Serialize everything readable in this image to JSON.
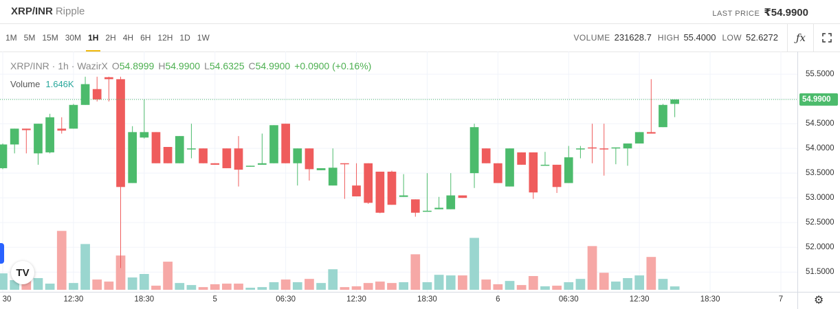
{
  "header": {
    "symbol": "XRP/INR",
    "name": "Ripple",
    "last_price_label": "LAST PRICE",
    "last_price": "₹54.9900"
  },
  "toolbar": {
    "intervals": [
      "1M",
      "5M",
      "15M",
      "30M",
      "1H",
      "2H",
      "4H",
      "6H",
      "12H",
      "1D",
      "1W"
    ],
    "active_index": 4,
    "stats": [
      {
        "label": "VOLUME",
        "value": "231628.7"
      },
      {
        "label": "HIGH",
        "value": "55.4000"
      },
      {
        "label": "LOW",
        "value": "52.6272"
      }
    ]
  },
  "chart_data": {
    "type": "candlestick",
    "legend": {
      "title": "XRP/INR · 1h · WazirX",
      "ohlc": [
        {
          "label": "O",
          "value": "54.8999"
        },
        {
          "label": "H",
          "value": "54.9900"
        },
        {
          "label": "L",
          "value": "54.6325"
        },
        {
          "label": "C",
          "value": "54.9900"
        }
      ],
      "change": "+0.0900 (+0.16%)"
    },
    "volume_legend": {
      "name": "Volume",
      "value": "1.646K"
    },
    "up_color": "#4cbb6c",
    "down_color": "#ef5c5c",
    "volume_up_color": "#9ad6cf",
    "volume_down_color": "#f6a8a6",
    "xlim": [
      -0.233,
      67.4
    ],
    "ylim": [
      51.1,
      55.96
    ],
    "grid": true,
    "xticks": [
      {
        "value": 0,
        "label": "30"
      },
      {
        "value": 6,
        "label": "12:30"
      },
      {
        "value": 12,
        "label": "18:30"
      },
      {
        "value": 18,
        "label": "5"
      },
      {
        "value": 24,
        "label": "06:30"
      },
      {
        "value": 30,
        "label": "12:30"
      },
      {
        "value": 36,
        "label": "18:30"
      },
      {
        "value": 42,
        "label": "6"
      },
      {
        "value": 48,
        "label": "06:30"
      },
      {
        "value": 54,
        "label": "12:30"
      },
      {
        "value": 60,
        "label": "18:30"
      },
      {
        "value": 66,
        "label": "7"
      }
    ],
    "yticks": [
      {
        "value": 51.5,
        "label": "51.5000"
      },
      {
        "value": 52,
        "label": "52.0000"
      },
      {
        "value": 52.5,
        "label": "52.5000"
      },
      {
        "value": 53,
        "label": "53.0000"
      },
      {
        "value": 53.5,
        "label": "53.5000"
      },
      {
        "value": 54,
        "label": "54.0000"
      },
      {
        "value": 54.5,
        "label": "54.5000"
      },
      {
        "value": 55,
        "label": "55.0000"
      },
      {
        "value": 55.5,
        "label": "55.5000"
      }
    ],
    "last_price": {
      "value": 54.99,
      "label": "54.9900"
    },
    "open": [
      53.6,
      54.08,
      54.4,
      53.9,
      53.92,
      54.4,
      54.4,
      54.88,
      55.2,
      55.44,
      55.4,
      53.3,
      54.22,
      54.33,
      54.03,
      53.7,
      53.98,
      54.0,
      53.7,
      54.0,
      54.0,
      53.63,
      53.67,
      53.7,
      54.5,
      53.7,
      54.0,
      53.56,
      53.25,
      53.7,
      53.25,
      53.7,
      53.53,
      53.53,
      53.02,
      52.97,
      52.73,
      52.77,
      52.77,
      53.05,
      53.5,
      54.0,
      53.7,
      53.23,
      53.92,
      53.92,
      53.66,
      53.67,
      53.3,
      53.98,
      54.02,
      54.0,
      54.0,
      54.0,
      54.1,
      54.33,
      54.43,
      54.8999
    ],
    "high": [
      54.1,
      54.4,
      54.4,
      54.5,
      54.7,
      54.63,
      54.9,
      55.45,
      55.45,
      55.45,
      55.45,
      54.45,
      54.99,
      54.33,
      54.03,
      54.25,
      54.5,
      54.0,
      53.7,
      54.0,
      54.25,
      53.65,
      54.3,
      54.47,
      54.5,
      54.0,
      54.0,
      53.6,
      54.0,
      53.7,
      53.7,
      53.7,
      53.53,
      53.55,
      53.48,
      52.97,
      53.5,
      53.02,
      53.5,
      53.05,
      54.5,
      54.0,
      53.7,
      54.0,
      53.92,
      53.92,
      53.93,
      53.67,
      54.05,
      54.05,
      54.5,
      54.5,
      54.02,
      54.1,
      54.33,
      55.4,
      54.9,
      54.99
    ],
    "low": [
      53.58,
      53.9,
      53.9,
      53.67,
      53.9,
      54.3,
      54.4,
      54.88,
      54.95,
      54.95,
      51.58,
      53.3,
      54.2,
      53.7,
      53.7,
      53.7,
      53.8,
      53.7,
      53.67,
      53.6,
      53.23,
      53.63,
      53.67,
      53.7,
      53.7,
      53.25,
      53.35,
      53.56,
      53.25,
      52.98,
      53.03,
      52.88,
      52.69,
      52.86,
      53.02,
      52.62,
      52.73,
      52.77,
      52.77,
      53.0,
      53.2,
      53.7,
      53.3,
      53.23,
      53.67,
      52.98,
      53.66,
      53.1,
      53.3,
      53.8,
      53.7,
      53.45,
      53.68,
      53.65,
      54.1,
      54.3,
      54.43,
      54.6325
    ],
    "close": [
      54.08,
      54.4,
      54.37,
      54.5,
      54.63,
      54.36,
      54.88,
      55.3,
      54.99,
      55.4,
      53.22,
      54.33,
      54.33,
      53.7,
      53.7,
      54.25,
      54.0,
      53.7,
      53.67,
      53.6,
      53.57,
      53.65,
      53.7,
      54.47,
      53.7,
      54.0,
      53.58,
      53.6,
      53.61,
      53.68,
      53.03,
      52.9,
      52.7,
      52.86,
      53.05,
      52.7,
      52.74,
      52.8,
      53.05,
      53.0,
      54.43,
      53.7,
      53.3,
      54.0,
      53.67,
      53.11,
      53.67,
      53.22,
      53.82,
      54.0,
      54.0,
      53.98,
      54.02,
      54.1,
      54.33,
      54.3,
      54.88,
      54.99
    ],
    "volume": [
      8.0,
      4.7,
      7.3,
      5.7,
      3.0,
      28.7,
      3.3,
      22.3,
      5.0,
      4.0,
      16.7,
      6.0,
      7.7,
      2.0,
      13.7,
      3.3,
      2.3,
      1.3,
      2.7,
      3.0,
      3.0,
      1.0,
      1.3,
      3.7,
      5.0,
      3.7,
      5.3,
      3.3,
      10.0,
      1.3,
      1.7,
      3.3,
      4.0,
      3.3,
      3.7,
      17.3,
      3.7,
      7.3,
      7.0,
      7.0,
      25.3,
      5.0,
      2.7,
      4.3,
      2.3,
      6.7,
      1.7,
      2.0,
      3.7,
      5.3,
      21.3,
      8.3,
      4.0,
      5.7,
      7.0,
      16.0,
      5.3,
      1.646
    ]
  }
}
